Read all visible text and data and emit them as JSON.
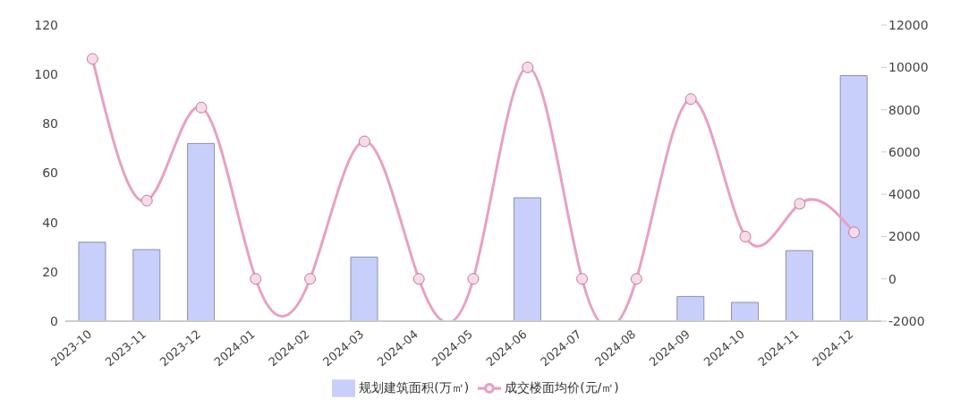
{
  "chart_data": {
    "type": "bar",
    "categories": [
      "2023-10",
      "2023-11",
      "2023-12",
      "2024-01",
      "2024-02",
      "2024-03",
      "2024-04",
      "2024-05",
      "2024-06",
      "2024-07",
      "2024-08",
      "2024-09",
      "2024-10",
      "2024-11",
      "2024-12"
    ],
    "series": [
      {
        "name": "规划建筑面积(万㎡)",
        "color": "#c8cffa",
        "values": [
          32,
          29,
          72,
          null,
          null,
          26,
          null,
          null,
          50,
          null,
          null,
          10,
          7.6,
          28.6,
          99.5
        ]
      },
      {
        "name": "成交楼面均价(元/㎡)",
        "type": "line",
        "axis": "y2",
        "color": "#e8a0c4",
        "values": [
          10400,
          3700,
          8100,
          0,
          0,
          6500,
          0,
          0,
          10000,
          0,
          0,
          8500,
          2000,
          3550,
          2200
        ]
      }
    ],
    "ylim": [
      0,
      120
    ],
    "yticks": [
      0,
      20,
      40,
      60,
      80,
      100,
      120
    ],
    "y2lim": [
      -2000,
      12000
    ],
    "y2ticks": [
      -2000,
      0,
      2000,
      4000,
      6000,
      8000,
      10000,
      12000
    ],
    "legend": "bottom",
    "marker": "circle",
    "line_style": "solid"
  }
}
